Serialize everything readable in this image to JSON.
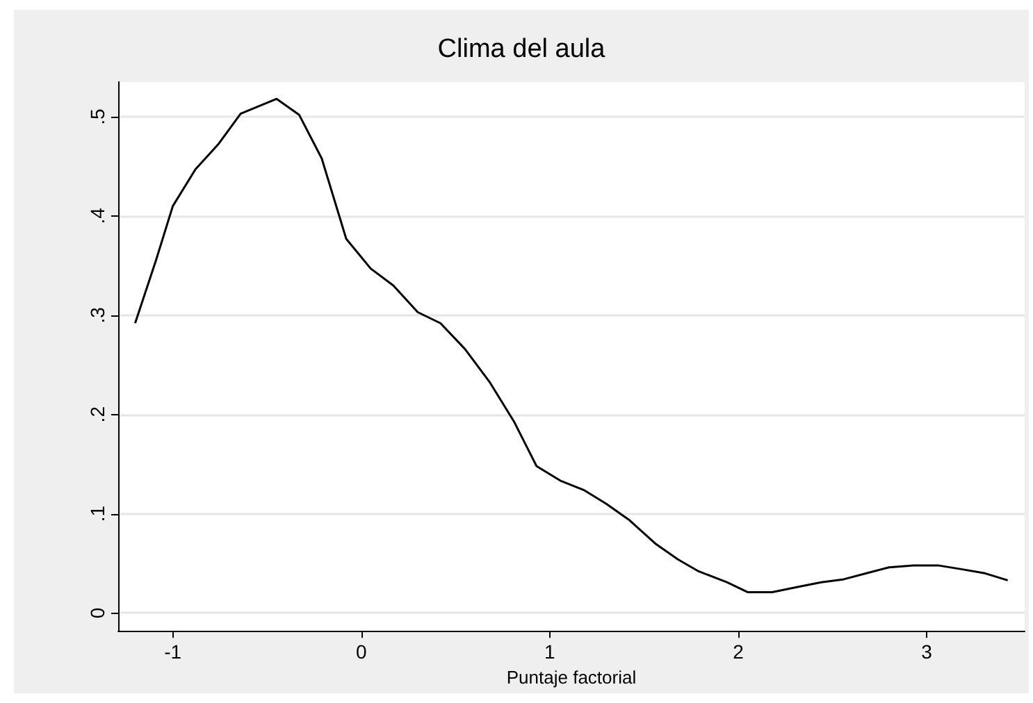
{
  "chart_data": {
    "type": "line",
    "title": "Clima del aula",
    "xlabel": "Puntaje factorial",
    "series": [
      {
        "color": "#000000",
        "x": [
          -1.2,
          -1.09,
          -1.0,
          -0.88,
          -0.76,
          -0.64,
          -0.45,
          -0.33,
          -0.21,
          -0.08,
          0.05,
          0.17,
          0.3,
          0.42,
          0.55,
          0.68,
          0.81,
          0.93,
          1.06,
          1.18,
          1.3,
          1.42,
          1.56,
          1.68,
          1.79,
          1.94,
          2.05,
          2.18,
          2.31,
          2.44,
          2.56,
          2.68,
          2.8,
          2.93,
          3.06,
          3.19,
          3.31,
          3.43
        ],
        "values": [
          0.292,
          0.355,
          0.41,
          0.447,
          0.472,
          0.503,
          0.518,
          0.502,
          0.458,
          0.377,
          0.347,
          0.33,
          0.303,
          0.292,
          0.266,
          0.233,
          0.193,
          0.148,
          0.133,
          0.124,
          0.11,
          0.094,
          0.07,
          0.054,
          0.042,
          0.031,
          0.021,
          0.021,
          0.026,
          0.031,
          0.034,
          0.04,
          0.046,
          0.048,
          0.048,
          0.044,
          0.04,
          0.033
        ]
      }
    ],
    "xlim": [
      -1.29,
      3.52
    ],
    "xticks": [
      -1,
      0,
      1,
      2,
      3
    ],
    "ylim": [
      -0.018,
      0.535
    ],
    "yticks": [
      0,
      {
        "value": 0.1,
        "label": ".1"
      },
      {
        "value": 0.2,
        "label": ".2"
      },
      {
        "value": 0.3,
        "label": ".3"
      },
      {
        "value": 0.4,
        "label": ".4"
      },
      {
        "value": 0.5,
        "label": ".5"
      }
    ],
    "grid": "y",
    "marker": "none",
    "line_style": "solid"
  }
}
